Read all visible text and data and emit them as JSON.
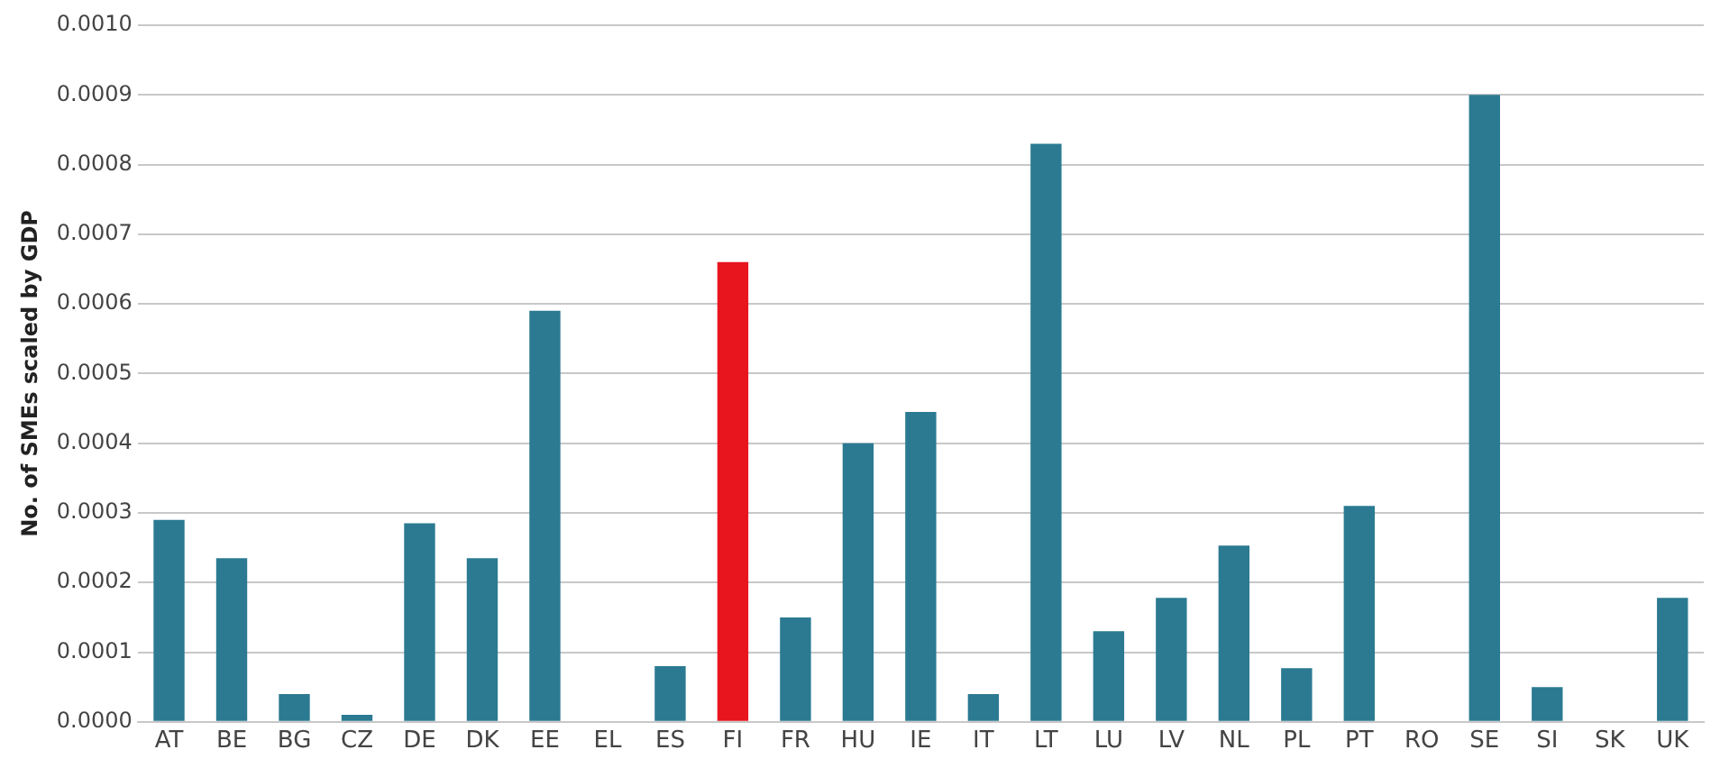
{
  "chart_data": {
    "type": "bar",
    "ylabel": "No. of SMEs scaled by GDP",
    "categories": [
      "AT",
      "BE",
      "BG",
      "CZ",
      "DE",
      "DK",
      "EE",
      "EL",
      "ES",
      "FI",
      "FR",
      "HU",
      "IE",
      "IT",
      "LT",
      "LU",
      "LV",
      "NL",
      "PL",
      "PT",
      "RO",
      "SE",
      "SI",
      "SK",
      "UK"
    ],
    "values": [
      0.00029,
      0.000235,
      4e-05,
      1e-05,
      0.000285,
      0.000235,
      0.00059,
      0,
      8e-05,
      0.00066,
      0.00015,
      0.0004,
      0.000445,
      4e-05,
      0.00083,
      0.00013,
      0.000178,
      0.000253,
      7.7e-05,
      0.00031,
      0,
      0.0009,
      5e-05,
      0,
      0.000178
    ],
    "colors": [
      "#2b7a92",
      "#2b7a92",
      "#2b7a92",
      "#2b7a92",
      "#2b7a92",
      "#2b7a92",
      "#2b7a92",
      "#2b7a92",
      "#2b7a92",
      "#e8141e",
      "#2b7a92",
      "#2b7a92",
      "#2b7a92",
      "#2b7a92",
      "#2b7a92",
      "#2b7a92",
      "#2b7a92",
      "#2b7a92",
      "#2b7a92",
      "#2b7a92",
      "#2b7a92",
      "#2b7a92",
      "#2b7a92",
      "#2b7a92",
      "#2b7a92"
    ],
    "ylim": [
      0,
      0.001
    ],
    "yticks": [
      {
        "value": 0,
        "label": "0.0000"
      },
      {
        "value": 0.0001,
        "label": "0.0001"
      },
      {
        "value": 0.0002,
        "label": "0.0002"
      },
      {
        "value": 0.0003,
        "label": "0.0003"
      },
      {
        "value": 0.0004,
        "label": "0.0004"
      },
      {
        "value": 0.0005,
        "label": "0.0005"
      },
      {
        "value": 0.0006,
        "label": "0.0006"
      },
      {
        "value": 0.0007,
        "label": "0.0007"
      },
      {
        "value": 0.0008,
        "label": "0.0008"
      },
      {
        "value": 0.0009,
        "label": "0.0009"
      },
      {
        "value": 0.001,
        "label": "0.0010"
      }
    ],
    "grid": "y",
    "legend": false
  }
}
